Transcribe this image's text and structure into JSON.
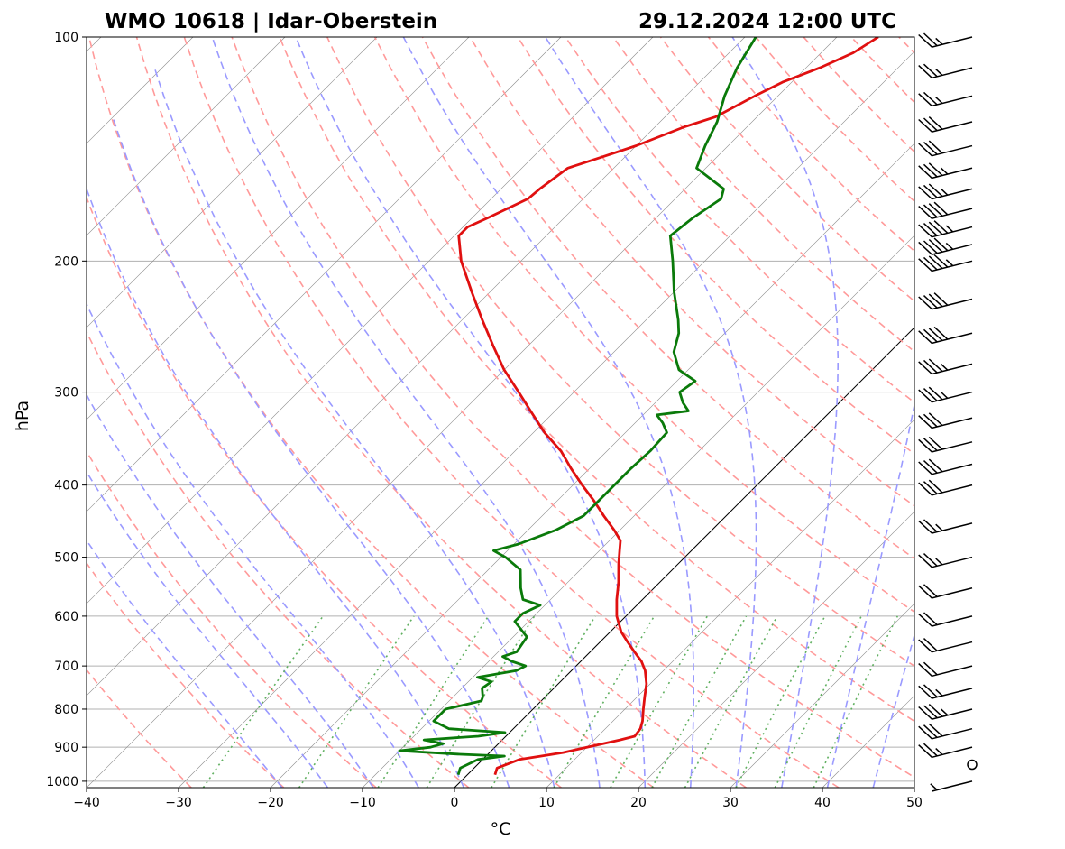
{
  "chart_data": {
    "type": "line",
    "subtype": "skew-T log-P diagram",
    "title_left": "WMO 10618 | Idar-Oberstein",
    "title_right": "29.12.2024 12:00 UTC",
    "xlabel": "°C",
    "ylabel": "hPa",
    "xlim": [
      -40,
      50
    ],
    "ylim": [
      1020,
      100
    ],
    "y_scale": "log",
    "x_ticks": [
      -40,
      -30,
      -20,
      -10,
      0,
      10,
      20,
      30,
      40,
      50
    ],
    "x_tick_labels": [
      "−40",
      "−30",
      "−20",
      "−10",
      "0",
      "10",
      "20",
      "30",
      "40",
      "50"
    ],
    "y_ticks": [
      1000,
      900,
      800,
      700,
      600,
      500,
      400,
      300,
      200,
      100
    ],
    "y_tick_labels": [
      "1000",
      "900",
      "800",
      "700",
      "600",
      "500",
      "400",
      "300",
      "200",
      "100"
    ],
    "grid": true,
    "colors": {
      "temperature": "#e01010",
      "dewpoint": "#0a7a0a",
      "dry_adiabat": "#ff9a9a",
      "moist_adiabat": "#9a9aff",
      "mixing_ratio": "#60b060",
      "isotherm": "#888888",
      "grid": "#b0b0b0"
    },
    "series": [
      {
        "name": "temperature",
        "points": [
          [
            980,
            3.0
          ],
          [
            960,
            2.5
          ],
          [
            935,
            4.0
          ],
          [
            925,
            6.0
          ],
          [
            915,
            8.0
          ],
          [
            900,
            10.0
          ],
          [
            880,
            12.8
          ],
          [
            870,
            14.0
          ],
          [
            850,
            13.8
          ],
          [
            830,
            13.2
          ],
          [
            800,
            12.0
          ],
          [
            770,
            10.8
          ],
          [
            740,
            9.6
          ],
          [
            710,
            8.0
          ],
          [
            690,
            6.6
          ],
          [
            670,
            4.8
          ],
          [
            650,
            3.0
          ],
          [
            630,
            1.2
          ],
          [
            600,
            -1.0
          ],
          [
            570,
            -2.8
          ],
          [
            540,
            -4.5
          ],
          [
            510,
            -6.5
          ],
          [
            490,
            -7.8
          ],
          [
            475,
            -8.8
          ],
          [
            460,
            -10.6
          ],
          [
            440,
            -13.3
          ],
          [
            420,
            -16.0
          ],
          [
            400,
            -19.0
          ],
          [
            380,
            -22.0
          ],
          [
            360,
            -25.0
          ],
          [
            340,
            -28.8
          ],
          [
            320,
            -32.3
          ],
          [
            300,
            -36.0
          ],
          [
            280,
            -40.0
          ],
          [
            260,
            -43.8
          ],
          [
            240,
            -47.8
          ],
          [
            220,
            -52.0
          ],
          [
            200,
            -56.5
          ],
          [
            185,
            -59.5
          ],
          [
            180,
            -59.5
          ],
          [
            175,
            -58.3
          ],
          [
            165,
            -56.0
          ],
          [
            160,
            -55.8
          ],
          [
            150,
            -55.0
          ],
          [
            145,
            -52.5
          ],
          [
            140,
            -50.0
          ],
          [
            132,
            -46.8
          ],
          [
            128,
            -44.5
          ],
          [
            120,
            -42.5
          ],
          [
            115,
            -41.0
          ],
          [
            110,
            -38.5
          ],
          [
            105,
            -36.5
          ],
          [
            100,
            -35.5
          ]
        ]
      },
      {
        "name": "dewpoint",
        "points": [
          [
            980,
            -1.0
          ],
          [
            960,
            -1.5
          ],
          [
            935,
            -0.5
          ],
          [
            925,
            2.0
          ],
          [
            920,
            -3.0
          ],
          [
            910,
            -10.0
          ],
          [
            900,
            -7.0
          ],
          [
            890,
            -6.0
          ],
          [
            880,
            -8.5
          ],
          [
            870,
            -3.0
          ],
          [
            860,
            -0.5
          ],
          [
            850,
            -7.0
          ],
          [
            830,
            -9.5
          ],
          [
            800,
            -9.5
          ],
          [
            780,
            -6.5
          ],
          [
            770,
            -6.8
          ],
          [
            750,
            -7.8
          ],
          [
            735,
            -7.5
          ],
          [
            725,
            -9.5
          ],
          [
            710,
            -6.0
          ],
          [
            700,
            -5.5
          ],
          [
            690,
            -7.5
          ],
          [
            680,
            -9.0
          ],
          [
            670,
            -8.0
          ],
          [
            640,
            -8.5
          ],
          [
            610,
            -11.5
          ],
          [
            595,
            -11.5
          ],
          [
            580,
            -10.5
          ],
          [
            570,
            -13.0
          ],
          [
            550,
            -14.5
          ],
          [
            520,
            -16.5
          ],
          [
            500,
            -19.5
          ],
          [
            490,
            -21.5
          ],
          [
            480,
            -19.5
          ],
          [
            460,
            -17.0
          ],
          [
            440,
            -15.5
          ],
          [
            420,
            -15.5
          ],
          [
            400,
            -15.5
          ],
          [
            380,
            -15.5
          ],
          [
            360,
            -15.3
          ],
          [
            340,
            -15.5
          ],
          [
            330,
            -17.0
          ],
          [
            322,
            -18.5
          ],
          [
            318,
            -15.5
          ],
          [
            310,
            -17.0
          ],
          [
            300,
            -18.5
          ],
          [
            290,
            -18.0
          ],
          [
            280,
            -21.0
          ],
          [
            265,
            -23.5
          ],
          [
            250,
            -25.0
          ],
          [
            240,
            -26.5
          ],
          [
            220,
            -30.0
          ],
          [
            200,
            -33.5
          ],
          [
            185,
            -36.5
          ],
          [
            175,
            -36.0
          ],
          [
            165,
            -35.0
          ],
          [
            160,
            -35.8
          ],
          [
            150,
            -41.0
          ],
          [
            140,
            -42.5
          ],
          [
            130,
            -43.8
          ],
          [
            120,
            -45.8
          ],
          [
            110,
            -47.5
          ],
          [
            100,
            -48.8
          ]
        ]
      }
    ],
    "wind_barbs": [
      {
        "p": 1000,
        "speed_kt": 5
      },
      {
        "p": 950,
        "speed_kt": 0
      },
      {
        "p": 900,
        "speed_kt": 25
      },
      {
        "p": 850,
        "speed_kt": 30
      },
      {
        "p": 800,
        "speed_kt": 35
      },
      {
        "p": 750,
        "speed_kt": 25
      },
      {
        "p": 700,
        "speed_kt": 20
      },
      {
        "p": 650,
        "speed_kt": 20
      },
      {
        "p": 600,
        "speed_kt": 20
      },
      {
        "p": 550,
        "speed_kt": 20
      },
      {
        "p": 500,
        "speed_kt": 25
      },
      {
        "p": 450,
        "speed_kt": 25
      },
      {
        "p": 400,
        "speed_kt": 30
      },
      {
        "p": 375,
        "speed_kt": 30
      },
      {
        "p": 350,
        "speed_kt": 30
      },
      {
        "p": 325,
        "speed_kt": 30
      },
      {
        "p": 300,
        "speed_kt": 35
      },
      {
        "p": 275,
        "speed_kt": 35
      },
      {
        "p": 250,
        "speed_kt": 40
      },
      {
        "p": 225,
        "speed_kt": 40
      },
      {
        "p": 200,
        "speed_kt": 45
      },
      {
        "p": 190,
        "speed_kt": 45
      },
      {
        "p": 180,
        "speed_kt": 45
      },
      {
        "p": 170,
        "speed_kt": 40
      },
      {
        "p": 160,
        "speed_kt": 35
      },
      {
        "p": 150,
        "speed_kt": 35
      },
      {
        "p": 140,
        "speed_kt": 30
      },
      {
        "p": 130,
        "speed_kt": 30
      },
      {
        "p": 120,
        "speed_kt": 25
      },
      {
        "p": 110,
        "speed_kt": 25
      },
      {
        "p": 100,
        "speed_kt": 25
      }
    ]
  }
}
